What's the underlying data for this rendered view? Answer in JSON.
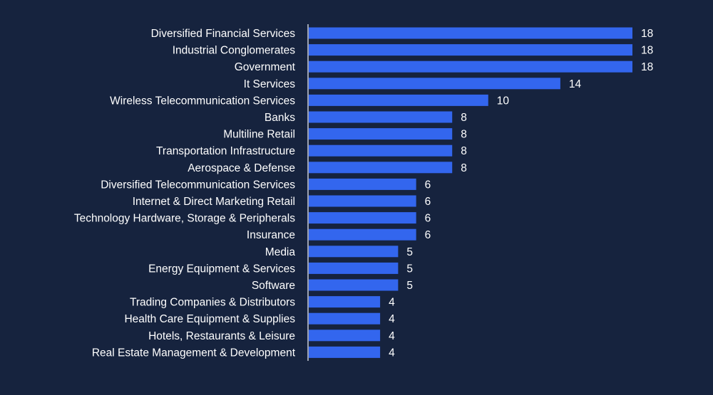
{
  "colors": {
    "background": "#16233e",
    "bar": "#3366ee",
    "text": "#ffffff",
    "axis": "#c8ccd6"
  },
  "chart_data": {
    "type": "bar",
    "orientation": "horizontal",
    "title": "",
    "xlabel": "",
    "ylabel": "",
    "xlim": [
      0,
      18
    ],
    "grid": false,
    "legend": "none",
    "categories": [
      "Diversified Financial Services",
      "Industrial Conglomerates",
      "Government",
      "It Services",
      "Wireless Telecommunication Services",
      "Banks",
      "Multiline Retail",
      "Transportation Infrastructure",
      "Aerospace & Defense",
      "Diversified Telecommunication Services",
      "Internet & Direct Marketing Retail",
      "Technology Hardware, Storage & Peripherals",
      "Insurance",
      "Media",
      "Energy Equipment & Services",
      "Software",
      "Trading Companies & Distributors",
      "Health Care Equipment & Supplies",
      "Hotels, Restaurants & Leisure",
      "Real Estate Management & Development"
    ],
    "values": [
      18,
      18,
      18,
      14,
      10,
      8,
      8,
      8,
      8,
      6,
      6,
      6,
      6,
      5,
      5,
      5,
      4,
      4,
      4,
      4
    ]
  }
}
